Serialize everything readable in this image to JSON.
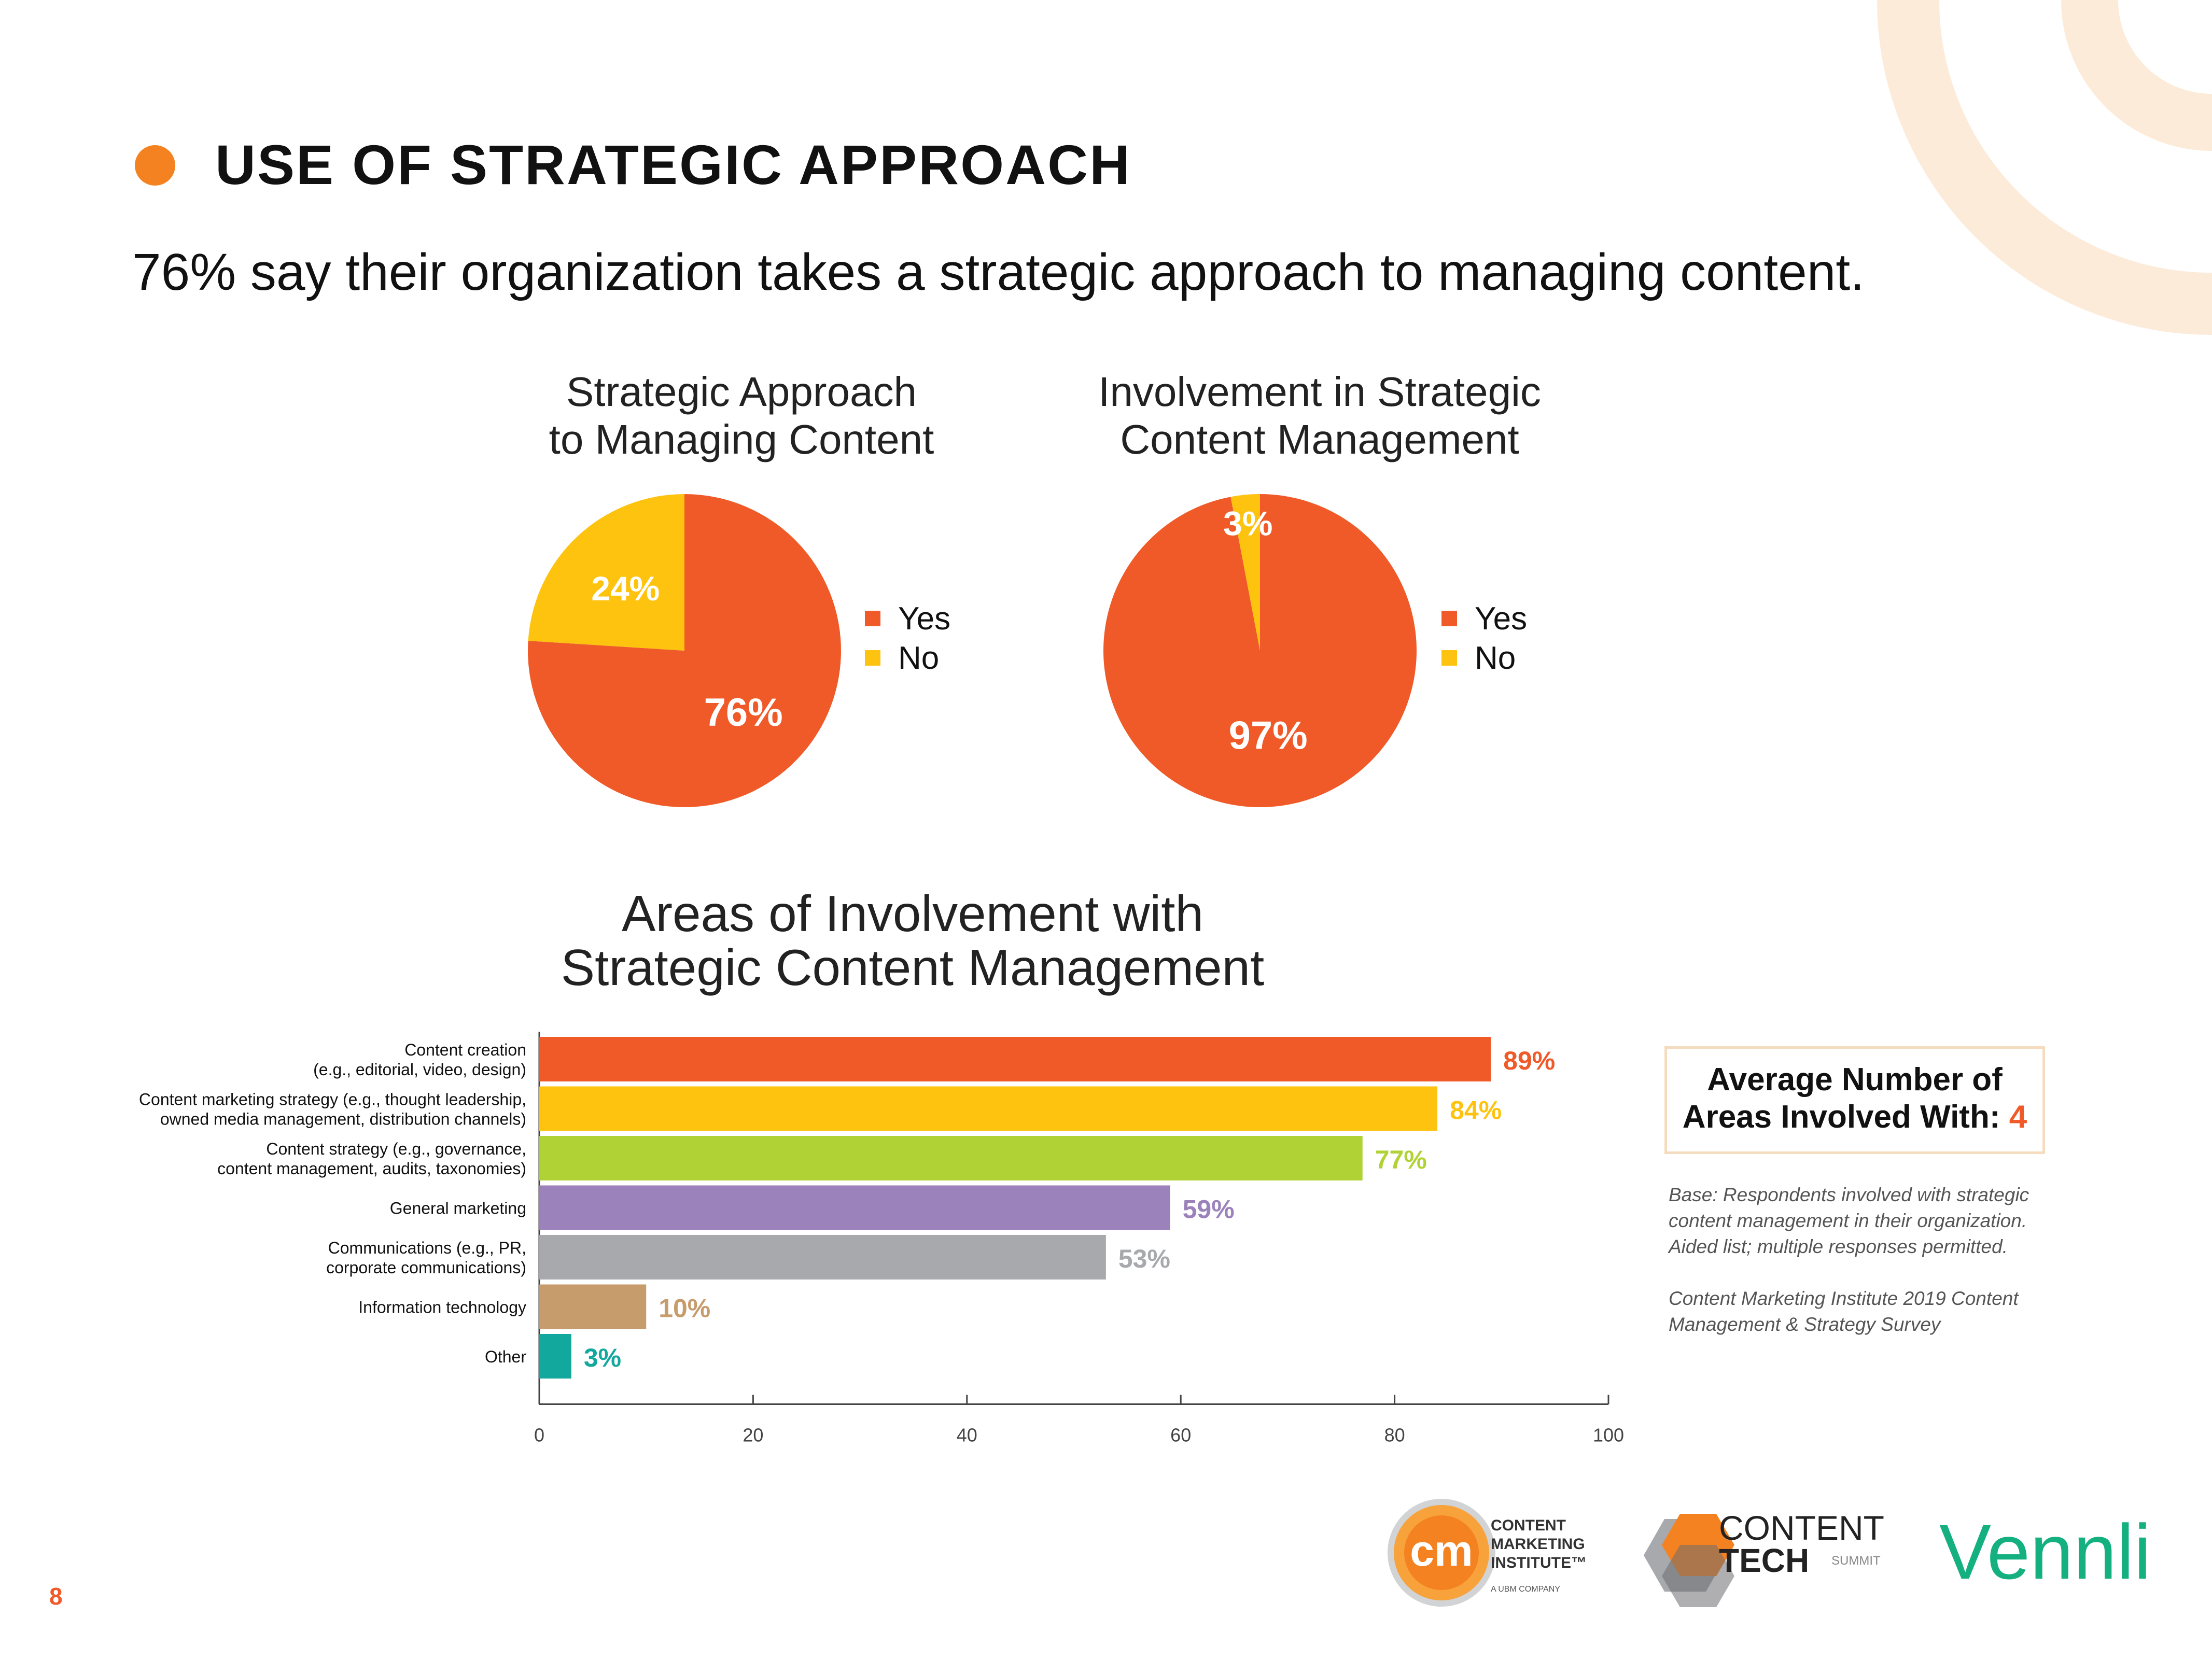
{
  "header": {
    "title": "USE OF STRATEGIC APPROACH",
    "subtitle": "76% say their organization takes a strategic approach to managing content."
  },
  "colors": {
    "orange": "#f05a28",
    "yellow": "#fec30f",
    "green": "#b1d235",
    "purple": "#9c82bb",
    "gray": "#a7a9ac",
    "tan": "#c69c6d",
    "teal": "#13a89e",
    "accent_dot": "#f58220"
  },
  "chart_data": [
    {
      "type": "pie",
      "title": "Strategic Approach to Managing Content",
      "title_lines": [
        "Strategic Approach",
        "to Managing Content"
      ],
      "slices": [
        {
          "label": "Yes",
          "value": 76,
          "display": "76%",
          "color": "#f05a28"
        },
        {
          "label": "No",
          "value": 24,
          "display": "24%",
          "color": "#fec30f"
        }
      ],
      "legend": [
        "Yes",
        "No"
      ],
      "legend_position": "right"
    },
    {
      "type": "pie",
      "title": "Involvement in Strategic Content Management",
      "title_lines": [
        "Involvement in Strategic",
        "Content Management"
      ],
      "slices": [
        {
          "label": "Yes",
          "value": 97,
          "display": "97%",
          "color": "#f05a28"
        },
        {
          "label": "No",
          "value": 3,
          "display": "3%",
          "color": "#fec30f"
        }
      ],
      "legend": [
        "Yes",
        "No"
      ],
      "legend_position": "right"
    },
    {
      "type": "bar",
      "orientation": "horizontal",
      "title": "Areas of Involvement with Strategic Content Management",
      "title_lines": [
        "Areas of Involvement with",
        "Strategic Content Management"
      ],
      "categories": [
        [
          "Content creation",
          "(e.g., editorial, video, design)"
        ],
        [
          "Content marketing strategy (e.g., thought leadership,",
          "owned media management, distribution channels)"
        ],
        [
          "Content strategy (e.g., governance,",
          "content management, audits, taxonomies)"
        ],
        [
          "General marketing"
        ],
        [
          "Communications (e.g., PR,",
          "corporate communications)"
        ],
        [
          "Information technology"
        ],
        [
          "Other"
        ]
      ],
      "values": [
        89,
        84,
        77,
        59,
        53,
        10,
        3
      ],
      "labels": [
        "89%",
        "84%",
        "77%",
        "59%",
        "53%",
        "10%",
        "3%"
      ],
      "colors": [
        "#f05a28",
        "#fec30f",
        "#b1d235",
        "#9c82bb",
        "#a7a9ac",
        "#c69c6d",
        "#13a89e"
      ],
      "xlim": [
        0,
        100
      ],
      "xticks": [
        "0",
        "20",
        "40",
        "60",
        "80",
        "100"
      ],
      "grid": false
    }
  ],
  "summary": {
    "avg_line1": "Average Number of",
    "avg_line2_prefix": "Areas Involved With: ",
    "avg_value": "4"
  },
  "notes": {
    "base": "Base: Respondents involved with strategic content management in their organization. Aided list; multiple responses permitted.",
    "source": "Content Marketing Institute 2019 Content Management & Strategy Survey"
  },
  "logos": {
    "cmi_mark": "cm",
    "cmi_lines": [
      "CONTENT",
      "MARKETING",
      "INSTITUTE™"
    ],
    "cmi_tagline": "A UBM COMPANY",
    "ct_top": "CONTENT",
    "ct_bottom": "TECH",
    "ct_summit": "SUMMIT",
    "vennli": "Vennli"
  },
  "footer": {
    "page_number": "8"
  }
}
